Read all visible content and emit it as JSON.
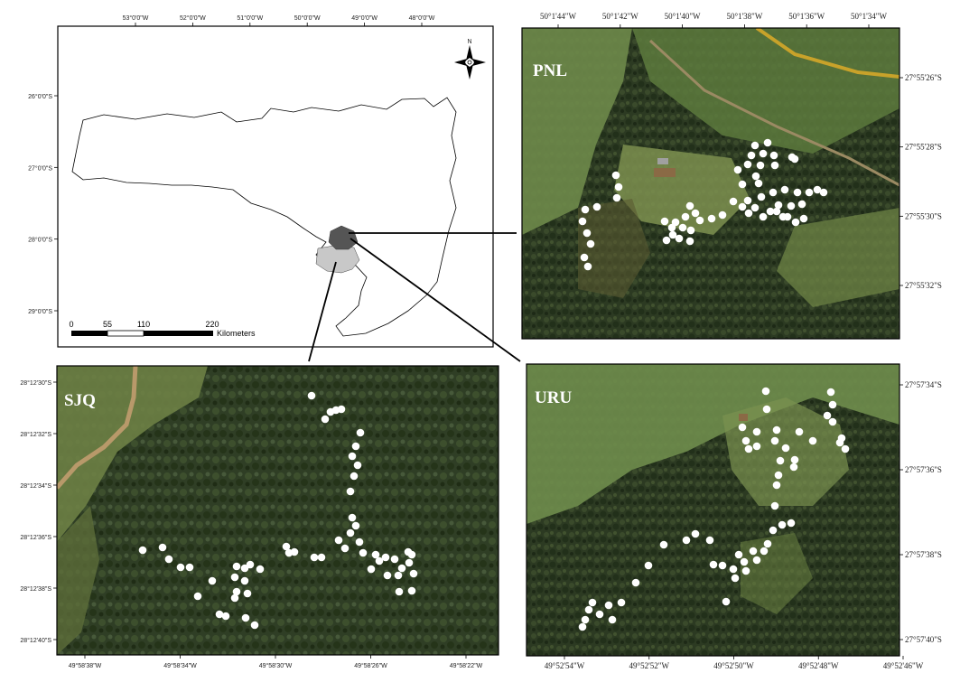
{
  "overview": {
    "top_ticks": [
      "53°0'0\"W",
      "52°0'0\"W",
      "51°0'0\"W",
      "50°0'0\"W",
      "49°0'0\"W",
      "48°0'0\"W"
    ],
    "left_ticks": [
      "26°0'0\"S",
      "27°0'0\"S",
      "28°0'0\"S",
      "29°0'0\"S"
    ],
    "north_label": "N",
    "scale_numbers": [
      "0",
      "55",
      "110",
      "220"
    ],
    "scale_unit": "Kilometers"
  },
  "pnl": {
    "label": "PNL",
    "top_ticks": [
      "50°1'44\"W",
      "50°1'42\"W",
      "50°1'40\"W",
      "50°1'38\"W",
      "50°1'36\"W",
      "50°1'34\"W"
    ],
    "right_ticks": [
      "27°55'26\"S",
      "27°55'28\"S",
      "27°55'30\"S",
      "27°55'32\"S"
    ]
  },
  "sjq": {
    "label": "SJQ",
    "left_ticks": [
      "28°12'30\"S",
      "28°12'32\"S",
      "28°12'34\"S",
      "28°12'36\"S",
      "28°12'38\"S",
      "28°12'40\"S"
    ],
    "bottom_ticks": [
      "49°58'38\"W",
      "49°58'34\"W",
      "49°58'30\"W",
      "49°58'26\"W",
      "49°58'22\"W"
    ]
  },
  "uru": {
    "label": "URU",
    "right_ticks": [
      "27°57'34\"S",
      "27°57'36\"S",
      "27°57'38\"S",
      "27°57'40\"S"
    ],
    "bottom_ticks": [
      "49°52'54\"W",
      "49°52'52\"W",
      "49°52'50\"W",
      "49°52'48\"W",
      "49°52'46\"W"
    ]
  },
  "colors": {
    "region_fill": "#ffffff",
    "highlight_dark": "#555555",
    "highlight_light": "#c8c8c8",
    "forest": "#2c3a22",
    "pasture": "#6e8a4a",
    "sample_point": "#ffffff"
  }
}
